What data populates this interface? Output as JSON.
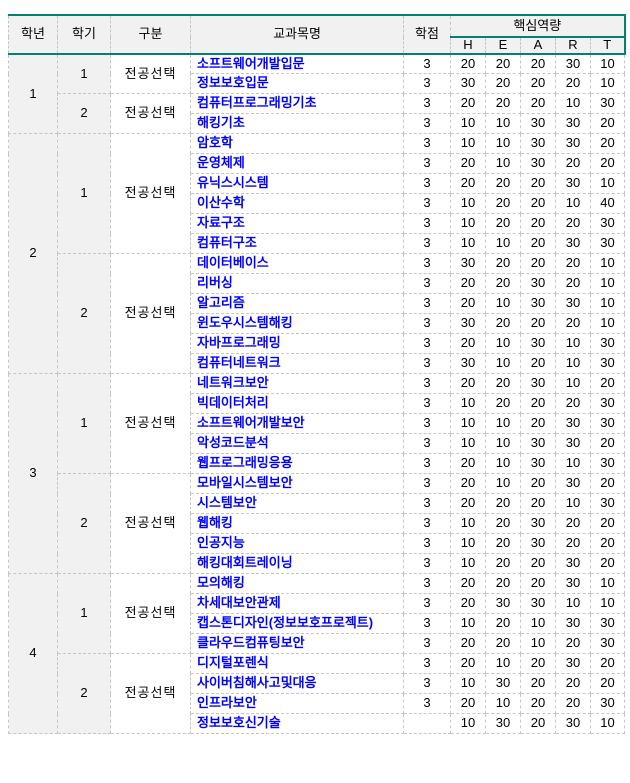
{
  "colors": {
    "accent_teal": "#00826E",
    "grid_dash": "#c6c6c6",
    "band_gray": "#f1f1f1",
    "course_link_blue": "#0000ff",
    "text_black": "#000000"
  },
  "table": {
    "header": {
      "year": "학년",
      "semester": "학기",
      "category": "구분",
      "course": "교과목명",
      "credit": "학점",
      "competency": "핵심역량",
      "competency_cols": [
        "H",
        "E",
        "A",
        "R",
        "T"
      ]
    },
    "years": [
      {
        "year": "1",
        "semesters": [
          {
            "semester": "1",
            "category": "전공선택",
            "courses": [
              {
                "name": "소프트웨어개발입문",
                "credit": "3",
                "scores": [
                  20,
                  20,
                  20,
                  30,
                  10
                ]
              },
              {
                "name": "정보보호입문",
                "credit": "3",
                "scores": [
                  30,
                  20,
                  20,
                  20,
                  10
                ]
              }
            ]
          },
          {
            "semester": "2",
            "category": "전공선택",
            "courses": [
              {
                "name": "컴퓨터프로그래밍기초",
                "credit": "3",
                "scores": [
                  20,
                  20,
                  20,
                  10,
                  30
                ]
              },
              {
                "name": "해킹기초",
                "credit": "3",
                "scores": [
                  10,
                  10,
                  30,
                  30,
                  20
                ]
              }
            ]
          }
        ]
      },
      {
        "year": "2",
        "semesters": [
          {
            "semester": "1",
            "category": "전공선택",
            "courses": [
              {
                "name": "암호학",
                "credit": "3",
                "scores": [
                  10,
                  10,
                  30,
                  30,
                  20
                ]
              },
              {
                "name": "운영체제",
                "credit": "3",
                "scores": [
                  20,
                  10,
                  30,
                  20,
                  20
                ]
              },
              {
                "name": "유닉스시스템",
                "credit": "3",
                "scores": [
                  20,
                  20,
                  20,
                  30,
                  10
                ]
              },
              {
                "name": "이산수학",
                "credit": "3",
                "scores": [
                  10,
                  20,
                  20,
                  10,
                  40
                ]
              },
              {
                "name": "자료구조",
                "credit": "3",
                "scores": [
                  10,
                  20,
                  20,
                  20,
                  30
                ]
              },
              {
                "name": "컴퓨터구조",
                "credit": "3",
                "scores": [
                  10,
                  10,
                  20,
                  30,
                  30
                ]
              }
            ]
          },
          {
            "semester": "2",
            "category": "전공선택",
            "courses": [
              {
                "name": "데이터베이스",
                "credit": "3",
                "scores": [
                  30,
                  20,
                  20,
                  20,
                  10
                ]
              },
              {
                "name": "리버싱",
                "credit": "3",
                "scores": [
                  20,
                  20,
                  30,
                  20,
                  10
                ]
              },
              {
                "name": "알고리즘",
                "credit": "3",
                "scores": [
                  20,
                  10,
                  30,
                  30,
                  10
                ]
              },
              {
                "name": "윈도우시스템해킹",
                "credit": "3",
                "scores": [
                  30,
                  20,
                  20,
                  20,
                  10
                ]
              },
              {
                "name": "자바프로그래밍",
                "credit": "3",
                "scores": [
                  20,
                  10,
                  30,
                  10,
                  30
                ]
              },
              {
                "name": "컴퓨터네트워크",
                "credit": "3",
                "scores": [
                  30,
                  10,
                  20,
                  10,
                  30
                ]
              }
            ]
          }
        ]
      },
      {
        "year": "3",
        "semesters": [
          {
            "semester": "1",
            "category": "전공선택",
            "courses": [
              {
                "name": "네트워크보안",
                "credit": "3",
                "scores": [
                  20,
                  20,
                  30,
                  10,
                  20
                ]
              },
              {
                "name": "빅데이터처리",
                "credit": "3",
                "scores": [
                  10,
                  20,
                  20,
                  20,
                  30
                ]
              },
              {
                "name": "소프트웨어개발보안",
                "credit": "3",
                "scores": [
                  10,
                  10,
                  20,
                  30,
                  30
                ]
              },
              {
                "name": "악성코드분석",
                "credit": "3",
                "scores": [
                  10,
                  10,
                  30,
                  30,
                  20
                ]
              },
              {
                "name": "웹프로그래밍응용",
                "credit": "3",
                "scores": [
                  20,
                  10,
                  30,
                  10,
                  30
                ]
              }
            ]
          },
          {
            "semester": "2",
            "category": "전공선택",
            "courses": [
              {
                "name": "모바일시스템보안",
                "credit": "3",
                "scores": [
                  20,
                  10,
                  20,
                  30,
                  20
                ]
              },
              {
                "name": "시스템보안",
                "credit": "3",
                "scores": [
                  20,
                  20,
                  20,
                  10,
                  30
                ]
              },
              {
                "name": "웹해킹",
                "credit": "3",
                "scores": [
                  10,
                  20,
                  30,
                  20,
                  20
                ]
              },
              {
                "name": "인공지능",
                "credit": "3",
                "scores": [
                  10,
                  20,
                  30,
                  20,
                  20
                ]
              },
              {
                "name": "해킹대회트레이닝",
                "credit": "3",
                "scores": [
                  10,
                  20,
                  20,
                  30,
                  20
                ]
              }
            ]
          }
        ]
      },
      {
        "year": "4",
        "semesters": [
          {
            "semester": "1",
            "category": "전공선택",
            "courses": [
              {
                "name": "모의해킹",
                "credit": "3",
                "scores": [
                  20,
                  20,
                  20,
                  30,
                  10
                ]
              },
              {
                "name": "차세대보안관제",
                "credit": "3",
                "scores": [
                  20,
                  30,
                  30,
                  10,
                  10
                ]
              },
              {
                "name": "캡스톤디자인(정보보호프로젝트)",
                "credit": "3",
                "scores": [
                  10,
                  20,
                  10,
                  30,
                  30
                ]
              },
              {
                "name": "클라우드컴퓨팅보안",
                "credit": "3",
                "scores": [
                  20,
                  20,
                  10,
                  20,
                  30
                ]
              }
            ]
          },
          {
            "semester": "2",
            "category": "전공선택",
            "courses": [
              {
                "name": "디지털포렌식",
                "credit": "3",
                "scores": [
                  20,
                  10,
                  20,
                  30,
                  20
                ]
              },
              {
                "name": "사이버침해사고및대응",
                "credit": "3",
                "scores": [
                  10,
                  30,
                  20,
                  20,
                  20
                ]
              },
              {
                "name": "인프라보안",
                "credit": "3",
                "scores": [
                  20,
                  10,
                  20,
                  20,
                  30
                ]
              },
              {
                "name": "정보보호신기술",
                "credit": "",
                "scores": [
                  10,
                  30,
                  20,
                  30,
                  10
                ]
              }
            ]
          }
        ]
      }
    ]
  }
}
